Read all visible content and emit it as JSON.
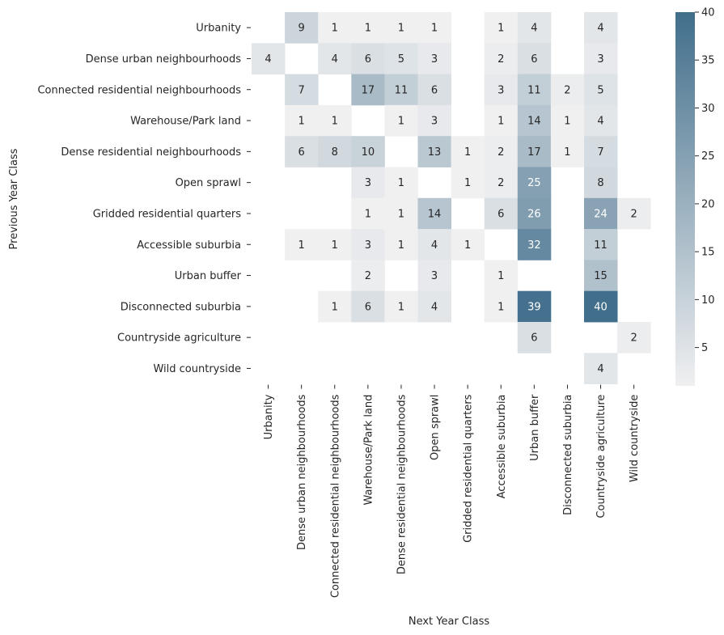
{
  "chart_data": {
    "type": "heatmap",
    "title": "",
    "xlabel": "Next Year Class",
    "ylabel": "Previous Year Class",
    "x_categories": [
      "Urbanity",
      "Dense urban neighbourhoods",
      "Connected residential neighbourhoods",
      "Warehouse/Park land",
      "Dense residential neighbourhoods",
      "Open sprawl",
      "Gridded residential quarters",
      "Accessible suburbia",
      "Urban buffer",
      "Disconnected suburbia",
      "Countryside agriculture",
      "Wild countryside"
    ],
    "y_categories": [
      "Urbanity",
      "Dense urban neighbourhoods",
      "Connected residential neighbourhoods",
      "Warehouse/Park land",
      "Dense residential neighbourhoods",
      "Open sprawl",
      "Gridded residential quarters",
      "Accessible suburbia",
      "Urban buffer",
      "Disconnected suburbia",
      "Countryside agriculture",
      "Wild countryside"
    ],
    "values": [
      [
        null,
        9,
        1,
        1,
        1,
        1,
        null,
        1,
        4,
        null,
        4,
        null
      ],
      [
        4,
        null,
        4,
        6,
        5,
        3,
        null,
        2,
        6,
        null,
        3,
        null
      ],
      [
        null,
        7,
        null,
        17,
        11,
        6,
        null,
        3,
        11,
        2,
        5,
        null
      ],
      [
        null,
        1,
        1,
        null,
        1,
        3,
        null,
        1,
        14,
        1,
        4,
        null
      ],
      [
        null,
        6,
        8,
        10,
        null,
        13,
        1,
        2,
        17,
        1,
        7,
        null
      ],
      [
        null,
        null,
        null,
        3,
        1,
        null,
        1,
        2,
        25,
        null,
        8,
        null
      ],
      [
        null,
        null,
        null,
        1,
        1,
        14,
        null,
        6,
        26,
        null,
        24,
        2
      ],
      [
        null,
        1,
        1,
        3,
        1,
        4,
        1,
        null,
        32,
        null,
        11,
        null
      ],
      [
        null,
        null,
        null,
        2,
        null,
        3,
        null,
        1,
        null,
        null,
        15,
        null
      ],
      [
        null,
        null,
        1,
        6,
        1,
        4,
        null,
        1,
        39,
        null,
        40,
        null
      ],
      [
        null,
        null,
        null,
        null,
        null,
        null,
        null,
        null,
        6,
        null,
        null,
        2
      ],
      [
        null,
        null,
        null,
        null,
        null,
        null,
        null,
        null,
        null,
        null,
        4,
        null
      ]
    ],
    "colorbar": {
      "min": 1,
      "max": 40,
      "ticks": [
        5,
        10,
        15,
        20,
        25,
        30,
        35,
        40
      ],
      "low_color": "#f0f0f1",
      "high_color": "#416e8b"
    }
  }
}
